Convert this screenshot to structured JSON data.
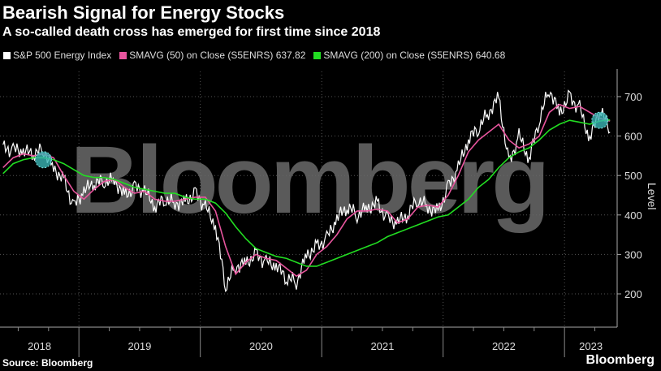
{
  "title": "Bearish Signal for Energy Stocks",
  "subtitle": "A so-called death cross has emerged for first time since 2018",
  "source": "Source: Bloomberg",
  "brand": "Bloomberg",
  "watermark": "Bloomberg",
  "chart_data": {
    "type": "line",
    "title": "Bearish Signal for Energy Stocks",
    "ylabel": "Level",
    "xlabel": "",
    "ylim": [
      150,
      760
    ],
    "yticks": [
      200,
      300,
      400,
      500,
      600,
      700
    ],
    "x_ticks": [
      "2018",
      "2019",
      "2020",
      "2021",
      "2022",
      "2023"
    ],
    "start": "2018-05",
    "months": 61,
    "legend": [
      "S&P 500 Energy Index",
      "SMAVG (50)  on Close (S5ENRS) 637.82",
      "SMAVG (200)  on Close (S5ENRS) 640.68"
    ],
    "colors": {
      "index": "#ffffff",
      "sma50": "#e8559e",
      "sma200": "#22dd22",
      "cross": "#3ab5b5"
    },
    "series": [
      {
        "name": "S&P 500 Energy Index",
        "values": [
          570,
          565,
          560,
          555,
          565,
          520,
          490,
          420,
          460,
          480,
          485,
          490,
          450,
          470,
          460,
          420,
          440,
          430,
          435,
          455,
          420,
          370,
          220,
          270,
          280,
          300,
          280,
          270,
          240,
          230,
          300,
          320,
          340,
          390,
          420,
          400,
          420,
          430,
          390,
          380,
          400,
          440,
          420,
          410,
          470,
          520,
          590,
          620,
          660,
          700,
          530,
          600,
          540,
          640,
          720,
          660,
          700,
          670,
          590,
          670,
          610
        ]
      },
      {
        "name": "SMAVG (50)",
        "values": [
          520,
          545,
          555,
          550,
          555,
          545,
          500,
          460,
          440,
          465,
          485,
          490,
          470,
          455,
          460,
          440,
          435,
          435,
          440,
          445,
          445,
          410,
          320,
          250,
          280,
          300,
          290,
          285,
          265,
          245,
          260,
          300,
          320,
          350,
          390,
          410,
          410,
          415,
          410,
          380,
          390,
          420,
          425,
          420,
          450,
          500,
          560,
          590,
          610,
          630,
          590,
          570,
          580,
          600,
          660,
          680,
          670,
          675,
          660,
          645,
          638
        ]
      },
      {
        "name": "SMAVG (200)",
        "values": [
          505,
          530,
          540,
          545,
          545,
          540,
          530,
          515,
          500,
          495,
          495,
          490,
          480,
          470,
          465,
          460,
          455,
          455,
          445,
          440,
          440,
          430,
          405,
          370,
          340,
          315,
          305,
          295,
          290,
          280,
          270,
          270,
          280,
          290,
          300,
          310,
          320,
          330,
          345,
          355,
          365,
          375,
          385,
          395,
          400,
          420,
          440,
          470,
          490,
          520,
          545,
          560,
          570,
          590,
          615,
          630,
          640,
          635,
          630,
          638,
          641
        ]
      }
    ],
    "death_cross_points": [
      {
        "date": "2018-09",
        "value": 540
      },
      {
        "date": "2023-04",
        "value": 640
      }
    ]
  }
}
